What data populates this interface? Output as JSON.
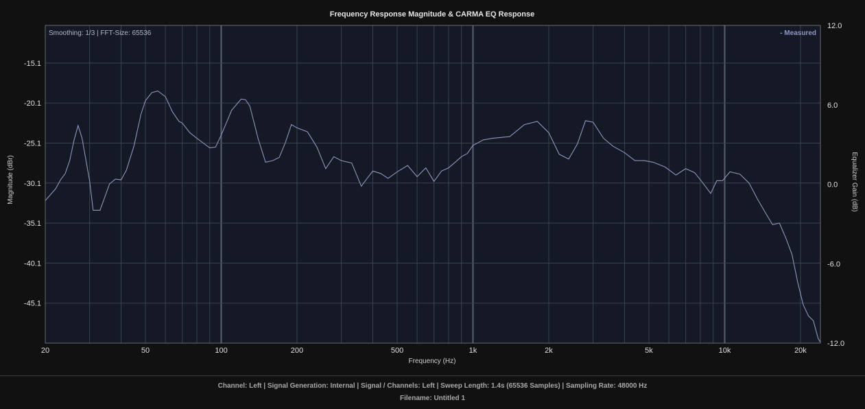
{
  "colors": {
    "background": "#111111",
    "plot_background": "#141925",
    "grid": "#3c4150",
    "grid_major": "#5b6070",
    "curve": "#8e98c0",
    "frame": "#6a6a6a"
  },
  "plot": {
    "smoothing_label": "Smoothing: 1/3 | FFT-Size: 65536"
  },
  "footer": {
    "line1": "Channel: Left  |  Signal Generation: Internal  |  Signal / Channels: Left  |  Sweep Length: 1.4s (65536 Samples)  |  Sampling Rate: 48000 Hz",
    "line2": "Filename: Untitled 1"
  },
  "chart_data": {
    "type": "line",
    "title": "Frequency Response Magnitude & CARMA EQ Response",
    "xlabel": "Frequency (Hz)",
    "ylabel": "Magnitude (dBr)",
    "y2label": "Equalizer Gain (dB)",
    "x_scale": "log",
    "xlim": [
      20,
      24000
    ],
    "ylim": [
      -50.1,
      -10.4
    ],
    "y2lim": [
      -12.0,
      12.0
    ],
    "x_ticks": [
      20,
      50,
      100,
      200,
      500,
      1000,
      2000,
      5000,
      10000,
      20000
    ],
    "x_tick_labels": [
      "20",
      "50",
      "100",
      "200",
      "500",
      "1k",
      "2k",
      "5k",
      "10k",
      "20k"
    ],
    "y_ticks": [
      -15.1,
      -20.1,
      -25.1,
      -30.1,
      -35.1,
      -40.1,
      -45.1
    ],
    "y2_ticks": [
      12.0,
      6.0,
      0.0,
      -6.0,
      -12.0
    ],
    "grid": true,
    "legend": {
      "placement": "top-right",
      "entries": [
        "- Measured"
      ]
    },
    "series": [
      {
        "name": "Measured",
        "x": [
          20,
          22,
          23,
          24,
          25,
          26,
          27,
          28,
          30,
          31,
          33,
          36,
          38,
          40,
          42,
          45,
          48,
          50,
          53,
          56,
          60,
          64,
          68,
          70,
          75,
          80,
          90,
          95,
          100,
          110,
          120,
          125,
          130,
          140,
          150,
          160,
          170,
          180,
          190,
          200,
          220,
          240,
          260,
          280,
          300,
          330,
          360,
          380,
          400,
          430,
          460,
          500,
          550,
          600,
          650,
          700,
          750,
          800,
          850,
          900,
          950,
          1000,
          1100,
          1200,
          1400,
          1600,
          1800,
          2000,
          2200,
          2400,
          2600,
          2800,
          3000,
          3300,
          3600,
          4000,
          4400,
          4800,
          5200,
          5800,
          6400,
          7000,
          7600,
          8200,
          8800,
          9300,
          9800,
          10500,
          11500,
          12500,
          13500,
          14500,
          15500,
          16500,
          17500,
          18500,
          19500,
          20500,
          21500,
          22500,
          23500,
          24000
        ],
        "values": [
          -32.3,
          -30.8,
          -29.7,
          -28.9,
          -27.3,
          -24.8,
          -22.9,
          -24.5,
          -29.8,
          -33.5,
          -33.5,
          -30.2,
          -29.6,
          -29.7,
          -28.5,
          -25.5,
          -21.5,
          -19.8,
          -18.8,
          -18.6,
          -19.3,
          -21.2,
          -22.4,
          -22.6,
          -23.8,
          -24.5,
          -25.7,
          -25.6,
          -24.1,
          -21.0,
          -19.6,
          -19.7,
          -20.5,
          -24.5,
          -27.5,
          -27.3,
          -26.9,
          -25.0,
          -22.8,
          -23.2,
          -23.7,
          -25.6,
          -28.3,
          -26.8,
          -27.3,
          -27.6,
          -30.5,
          -29.5,
          -28.6,
          -28.9,
          -29.5,
          -28.7,
          -27.9,
          -29.3,
          -28.2,
          -29.9,
          -28.6,
          -28.2,
          -27.5,
          -26.8,
          -26.4,
          -25.4,
          -24.7,
          -24.5,
          -24.3,
          -22.8,
          -22.4,
          -23.8,
          -26.5,
          -27.1,
          -25.2,
          -22.3,
          -22.5,
          -24.5,
          -25.5,
          -26.3,
          -27.3,
          -27.3,
          -27.5,
          -28.1,
          -29.1,
          -28.3,
          -28.8,
          -30.1,
          -31.4,
          -29.8,
          -29.8,
          -28.7,
          -29.0,
          -30.1,
          -32.1,
          -33.8,
          -35.3,
          -35.1,
          -37.0,
          -39.0,
          -42.5,
          -45.3,
          -46.7,
          -47.3,
          -49.5,
          -50.0
        ]
      }
    ]
  }
}
